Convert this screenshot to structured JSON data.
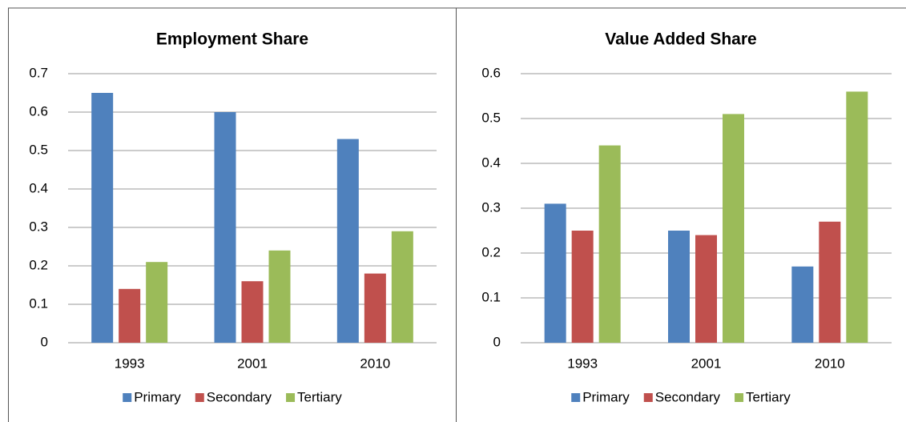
{
  "chart_data": [
    {
      "type": "bar",
      "title": "Employment Share",
      "categories": [
        "1993",
        "2001",
        "2010"
      ],
      "series": [
        {
          "name": "Primary",
          "color": "#4f81bd",
          "values": [
            0.65,
            0.6,
            0.53
          ]
        },
        {
          "name": "Secondary",
          "color": "#c0504d",
          "values": [
            0.14,
            0.16,
            0.18
          ]
        },
        {
          "name": "Tertiary",
          "color": "#9bbb59",
          "values": [
            0.21,
            0.24,
            0.29
          ]
        }
      ],
      "ylim": [
        0,
        0.7
      ],
      "yticks": [
        0,
        0.1,
        0.2,
        0.3,
        0.4,
        0.5,
        0.6,
        0.7
      ],
      "grid": true,
      "legend": "bottom"
    },
    {
      "type": "bar",
      "title": "Value Added Share",
      "categories": [
        "1993",
        "2001",
        "2010"
      ],
      "series": [
        {
          "name": "Primary",
          "color": "#4f81bd",
          "values": [
            0.31,
            0.25,
            0.17
          ]
        },
        {
          "name": "Secondary",
          "color": "#c0504d",
          "values": [
            0.25,
            0.24,
            0.27
          ]
        },
        {
          "name": "Tertiary",
          "color": "#9bbb59",
          "values": [
            0.44,
            0.51,
            0.56
          ]
        }
      ],
      "ylim": [
        0,
        0.6
      ],
      "yticks": [
        0,
        0.1,
        0.2,
        0.3,
        0.4,
        0.5,
        0.6
      ],
      "grid": true,
      "legend": "bottom"
    }
  ]
}
